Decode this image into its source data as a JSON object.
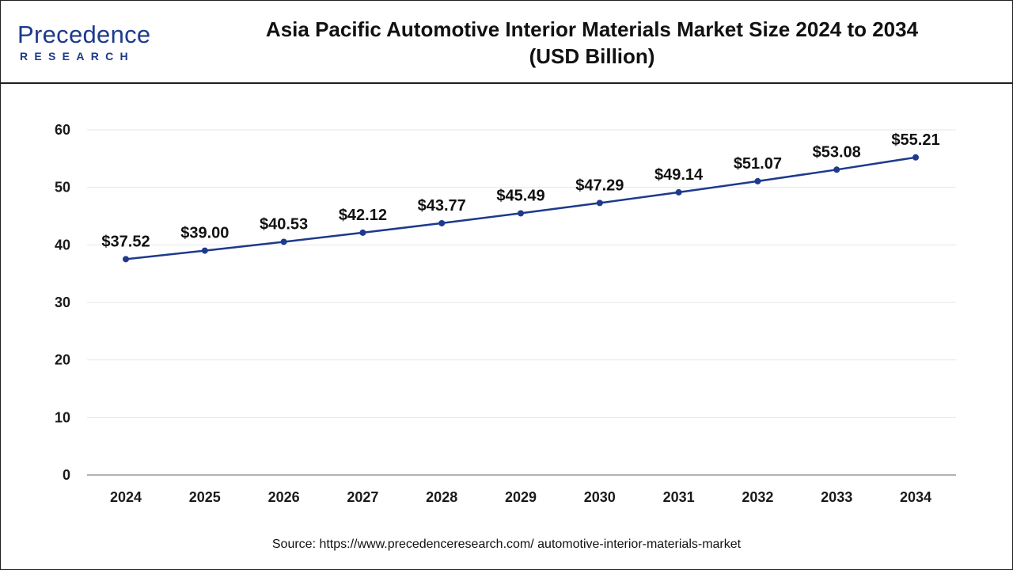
{
  "header": {
    "logo_main": "Precedence",
    "logo_sub": "RESEARCH",
    "title_line1": "Asia Pacific Automotive Interior Materials Market Size 2024 to 2034",
    "title_line2": "(USD Billion)"
  },
  "source": "Source: https://www.precedenceresearch.com/ automotive-interior-materials-market",
  "colors": {
    "line": "#1d3a8c",
    "brand": "#1d3a8c",
    "grid": "#e6e6e6",
    "axis": "#9a9a9a"
  },
  "chart_data": {
    "type": "line",
    "title": "Asia Pacific Automotive Interior Materials Market Size 2024 to 2034 (USD Billion)",
    "xlabel": "",
    "ylabel": "",
    "categories": [
      "2024",
      "2025",
      "2026",
      "2027",
      "2028",
      "2029",
      "2030",
      "2031",
      "2032",
      "2033",
      "2034"
    ],
    "series": [
      {
        "values": [
          37.52,
          39.0,
          40.53,
          42.12,
          43.77,
          45.49,
          47.29,
          49.14,
          51.07,
          53.08,
          55.21
        ],
        "labels": [
          "$37.52",
          "$39.00",
          "$40.53",
          "$42.12",
          "$43.77",
          "$45.49",
          "$47.29",
          "$49.14",
          "$51.07",
          "$53.08",
          "$55.21"
        ]
      }
    ],
    "ylim": [
      0,
      60
    ],
    "yticks": [
      "0",
      "10",
      "20",
      "30",
      "40",
      "50",
      "60"
    ],
    "grid": true,
    "legend": "none"
  }
}
